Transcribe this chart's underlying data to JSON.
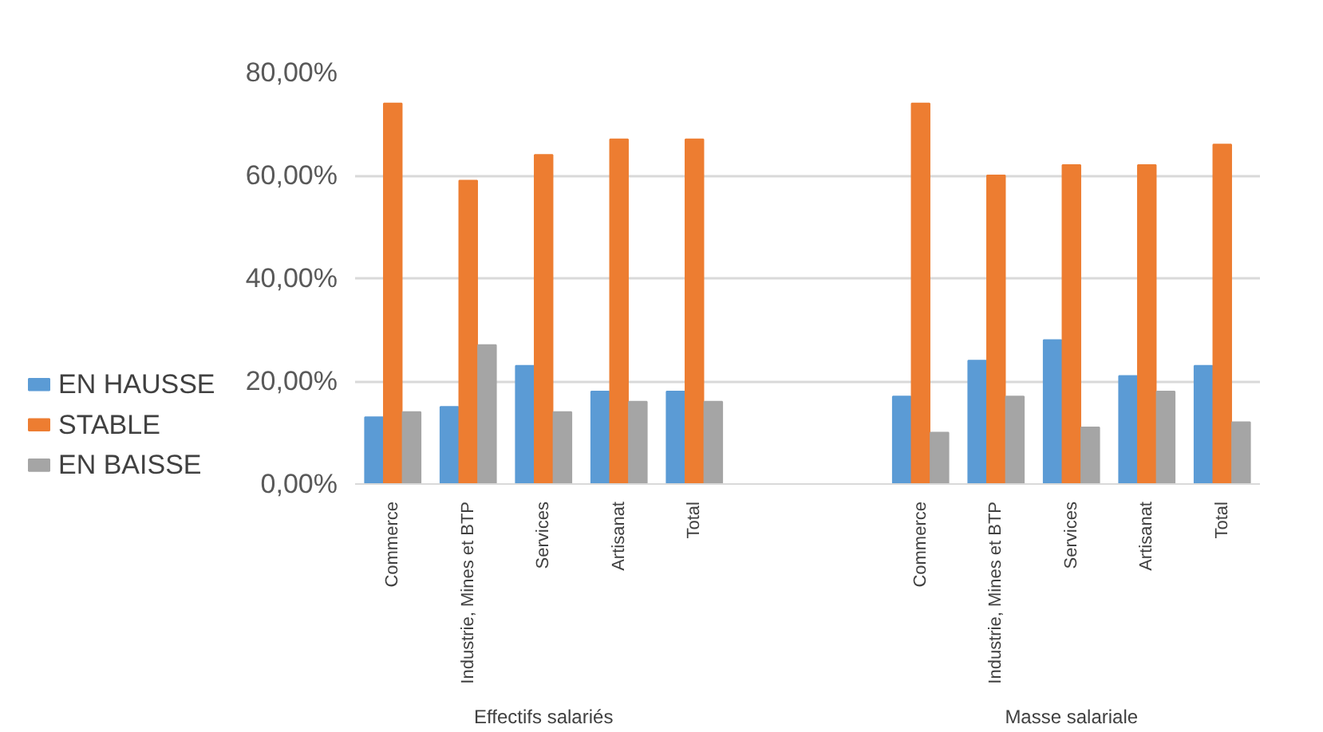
{
  "chart_data": {
    "type": "bar",
    "categories": [
      "Commerce",
      "Industrie, Mines et BTP",
      "Services",
      "Artisanat",
      "Total",
      "Commerce",
      "Industrie, Mines et BTP",
      "Services",
      "Artisanat",
      "Total"
    ],
    "series": [
      {
        "name": "EN HAUSSE",
        "color": "#5b9bd5",
        "values": [
          13,
          15,
          23,
          18,
          18,
          17,
          24,
          28,
          21,
          23
        ]
      },
      {
        "name": "STABLE",
        "color": "#ed7d31",
        "values": [
          74,
          59,
          64,
          67,
          67,
          74,
          60,
          62,
          62,
          66
        ]
      },
      {
        "name": "EN BAISSE",
        "color": "#a5a5a5",
        "values": [
          14,
          27,
          14,
          16,
          16,
          10,
          17,
          11,
          18,
          12
        ]
      }
    ],
    "ylim": [
      0,
      80
    ],
    "yticks": [
      {
        "value": 0,
        "label": "0,00%"
      },
      {
        "value": 20,
        "label": "20,00%"
      },
      {
        "value": 40,
        "label": "40,00%"
      },
      {
        "value": 60,
        "label": "60,00%"
      },
      {
        "value": 80,
        "label": "80,00%"
      }
    ],
    "grid": "y",
    "legend": "bottom left",
    "annotations": [
      "Effectifs salariés",
      "Masse salariale"
    ]
  }
}
